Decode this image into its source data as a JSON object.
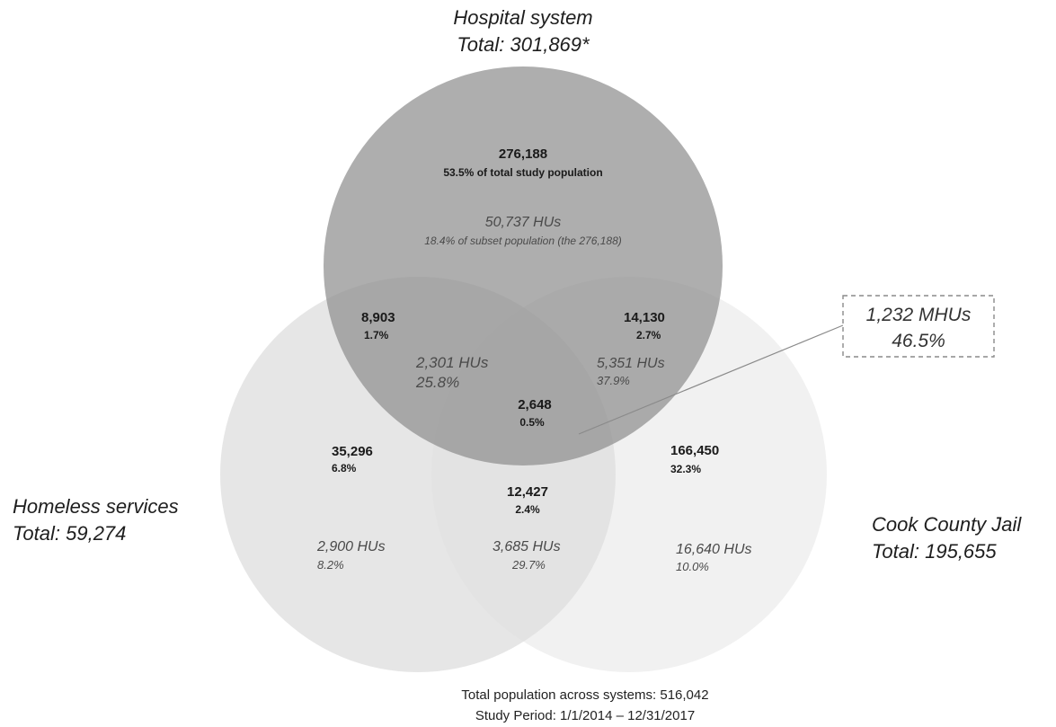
{
  "colors": {
    "hospital": "#8f8f8f",
    "homeless": "#d2d2d2",
    "jail": "#e0e0e0"
  },
  "sets": {
    "hospital": {
      "name": "Hospital system",
      "total": "Total: 301,869*"
    },
    "homeless": {
      "name": "Homeless services",
      "total": "Total: 59,274"
    },
    "jail": {
      "name": "Cook County Jail",
      "total": "Total: 195,655"
    }
  },
  "regions": {
    "hospital_only": {
      "count": "276,188",
      "share": "53.5% of total study population",
      "hus": "50,737 HUs",
      "hus_share": "18.4% of subset population (the 276,188)"
    },
    "hospital_homeless": {
      "count": "8,903",
      "pct": "1.7%",
      "hus": "2,301 HUs",
      "hus_pct": "25.8%"
    },
    "hospital_jail": {
      "count": "14,130",
      "pct": "2.7%",
      "hus": "5,351 HUs",
      "hus_pct": "37.9%"
    },
    "all_three": {
      "count": "2,648",
      "pct": "0.5%"
    },
    "homeless_only": {
      "count": "35,296",
      "pct": "6.8%",
      "hus": "2,900 HUs",
      "hus_pct": "8.2%"
    },
    "homeless_jail": {
      "count": "12,427",
      "pct": "2.4%",
      "hus": "3,685 HUs",
      "hus_pct": "29.7%"
    },
    "jail_only": {
      "count": "166,450",
      "pct": "32.3%",
      "hus": "16,640 HUs",
      "hus_pct": "10.0%"
    }
  },
  "callout": {
    "mhus": "1,232 MHUs",
    "pct": "46.5%"
  },
  "footer": {
    "total": "Total population  across systems: 516,042",
    "period": "Study Period: 1/1/2014 – 12/31/2017"
  }
}
